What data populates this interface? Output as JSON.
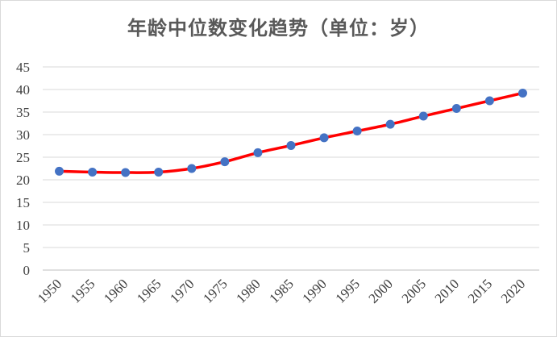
{
  "chart_data": {
    "type": "line",
    "title": "年龄中位数变化趋势（单位：岁）",
    "xlabel": "",
    "ylabel": "",
    "x": [
      "1950",
      "1955",
      "1960",
      "1965",
      "1970",
      "1975",
      "1980",
      "1985",
      "1990",
      "1995",
      "2000",
      "2005",
      "2010",
      "2015",
      "2020"
    ],
    "series": [
      {
        "name": "",
        "values": [
          21.9,
          21.7,
          21.6,
          21.7,
          22.5,
          24.0,
          26.0,
          27.6,
          29.3,
          30.8,
          32.3,
          34.1,
          35.8,
          37.5,
          39.2
        ]
      }
    ],
    "ylim": [
      0,
      45
    ],
    "yticks": [
      "0",
      "5",
      "10",
      "15",
      "20",
      "25",
      "30",
      "35",
      "40",
      "45"
    ],
    "grid": true,
    "legend": "none",
    "colors": {
      "line": "#ff0000",
      "marker": "#4472c4",
      "grid": "#d9d9d9",
      "axis": "#bfbfbf"
    }
  }
}
